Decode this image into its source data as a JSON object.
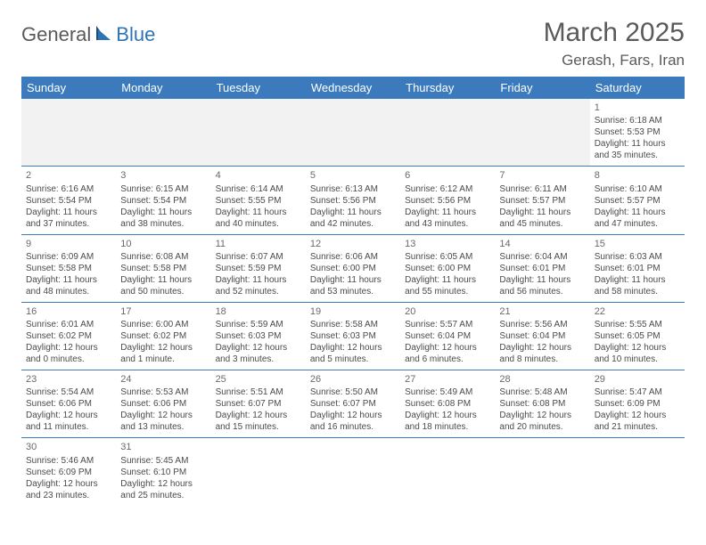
{
  "logo": {
    "general": "General",
    "blue": "Blue"
  },
  "title": "March 2025",
  "location": "Gerash, Fars, Iran",
  "colors": {
    "header_bg": "#3a7abd",
    "header_text": "#ffffff",
    "border": "#3a7abd",
    "text": "#4a4a4a",
    "title_text": "#5a5a5a",
    "logo_blue": "#2e74b5",
    "empty_bg": "#f2f2f2"
  },
  "day_headers": [
    "Sunday",
    "Monday",
    "Tuesday",
    "Wednesday",
    "Thursday",
    "Friday",
    "Saturday"
  ],
  "weeks": [
    [
      null,
      null,
      null,
      null,
      null,
      null,
      {
        "n": "1",
        "sr": "Sunrise: 6:18 AM",
        "ss": "Sunset: 5:53 PM",
        "dl": "Daylight: 11 hours and 35 minutes."
      }
    ],
    [
      {
        "n": "2",
        "sr": "Sunrise: 6:16 AM",
        "ss": "Sunset: 5:54 PM",
        "dl": "Daylight: 11 hours and 37 minutes."
      },
      {
        "n": "3",
        "sr": "Sunrise: 6:15 AM",
        "ss": "Sunset: 5:54 PM",
        "dl": "Daylight: 11 hours and 38 minutes."
      },
      {
        "n": "4",
        "sr": "Sunrise: 6:14 AM",
        "ss": "Sunset: 5:55 PM",
        "dl": "Daylight: 11 hours and 40 minutes."
      },
      {
        "n": "5",
        "sr": "Sunrise: 6:13 AM",
        "ss": "Sunset: 5:56 PM",
        "dl": "Daylight: 11 hours and 42 minutes."
      },
      {
        "n": "6",
        "sr": "Sunrise: 6:12 AM",
        "ss": "Sunset: 5:56 PM",
        "dl": "Daylight: 11 hours and 43 minutes."
      },
      {
        "n": "7",
        "sr": "Sunrise: 6:11 AM",
        "ss": "Sunset: 5:57 PM",
        "dl": "Daylight: 11 hours and 45 minutes."
      },
      {
        "n": "8",
        "sr": "Sunrise: 6:10 AM",
        "ss": "Sunset: 5:57 PM",
        "dl": "Daylight: 11 hours and 47 minutes."
      }
    ],
    [
      {
        "n": "9",
        "sr": "Sunrise: 6:09 AM",
        "ss": "Sunset: 5:58 PM",
        "dl": "Daylight: 11 hours and 48 minutes."
      },
      {
        "n": "10",
        "sr": "Sunrise: 6:08 AM",
        "ss": "Sunset: 5:58 PM",
        "dl": "Daylight: 11 hours and 50 minutes."
      },
      {
        "n": "11",
        "sr": "Sunrise: 6:07 AM",
        "ss": "Sunset: 5:59 PM",
        "dl": "Daylight: 11 hours and 52 minutes."
      },
      {
        "n": "12",
        "sr": "Sunrise: 6:06 AM",
        "ss": "Sunset: 6:00 PM",
        "dl": "Daylight: 11 hours and 53 minutes."
      },
      {
        "n": "13",
        "sr": "Sunrise: 6:05 AM",
        "ss": "Sunset: 6:00 PM",
        "dl": "Daylight: 11 hours and 55 minutes."
      },
      {
        "n": "14",
        "sr": "Sunrise: 6:04 AM",
        "ss": "Sunset: 6:01 PM",
        "dl": "Daylight: 11 hours and 56 minutes."
      },
      {
        "n": "15",
        "sr": "Sunrise: 6:03 AM",
        "ss": "Sunset: 6:01 PM",
        "dl": "Daylight: 11 hours and 58 minutes."
      }
    ],
    [
      {
        "n": "16",
        "sr": "Sunrise: 6:01 AM",
        "ss": "Sunset: 6:02 PM",
        "dl": "Daylight: 12 hours and 0 minutes."
      },
      {
        "n": "17",
        "sr": "Sunrise: 6:00 AM",
        "ss": "Sunset: 6:02 PM",
        "dl": "Daylight: 12 hours and 1 minute."
      },
      {
        "n": "18",
        "sr": "Sunrise: 5:59 AM",
        "ss": "Sunset: 6:03 PM",
        "dl": "Daylight: 12 hours and 3 minutes."
      },
      {
        "n": "19",
        "sr": "Sunrise: 5:58 AM",
        "ss": "Sunset: 6:03 PM",
        "dl": "Daylight: 12 hours and 5 minutes."
      },
      {
        "n": "20",
        "sr": "Sunrise: 5:57 AM",
        "ss": "Sunset: 6:04 PM",
        "dl": "Daylight: 12 hours and 6 minutes."
      },
      {
        "n": "21",
        "sr": "Sunrise: 5:56 AM",
        "ss": "Sunset: 6:04 PM",
        "dl": "Daylight: 12 hours and 8 minutes."
      },
      {
        "n": "22",
        "sr": "Sunrise: 5:55 AM",
        "ss": "Sunset: 6:05 PM",
        "dl": "Daylight: 12 hours and 10 minutes."
      }
    ],
    [
      {
        "n": "23",
        "sr": "Sunrise: 5:54 AM",
        "ss": "Sunset: 6:06 PM",
        "dl": "Daylight: 12 hours and 11 minutes."
      },
      {
        "n": "24",
        "sr": "Sunrise: 5:53 AM",
        "ss": "Sunset: 6:06 PM",
        "dl": "Daylight: 12 hours and 13 minutes."
      },
      {
        "n": "25",
        "sr": "Sunrise: 5:51 AM",
        "ss": "Sunset: 6:07 PM",
        "dl": "Daylight: 12 hours and 15 minutes."
      },
      {
        "n": "26",
        "sr": "Sunrise: 5:50 AM",
        "ss": "Sunset: 6:07 PM",
        "dl": "Daylight: 12 hours and 16 minutes."
      },
      {
        "n": "27",
        "sr": "Sunrise: 5:49 AM",
        "ss": "Sunset: 6:08 PM",
        "dl": "Daylight: 12 hours and 18 minutes."
      },
      {
        "n": "28",
        "sr": "Sunrise: 5:48 AM",
        "ss": "Sunset: 6:08 PM",
        "dl": "Daylight: 12 hours and 20 minutes."
      },
      {
        "n": "29",
        "sr": "Sunrise: 5:47 AM",
        "ss": "Sunset: 6:09 PM",
        "dl": "Daylight: 12 hours and 21 minutes."
      }
    ],
    [
      {
        "n": "30",
        "sr": "Sunrise: 5:46 AM",
        "ss": "Sunset: 6:09 PM",
        "dl": "Daylight: 12 hours and 23 minutes."
      },
      {
        "n": "31",
        "sr": "Sunrise: 5:45 AM",
        "ss": "Sunset: 6:10 PM",
        "dl": "Daylight: 12 hours and 25 minutes."
      },
      null,
      null,
      null,
      null,
      null
    ]
  ]
}
